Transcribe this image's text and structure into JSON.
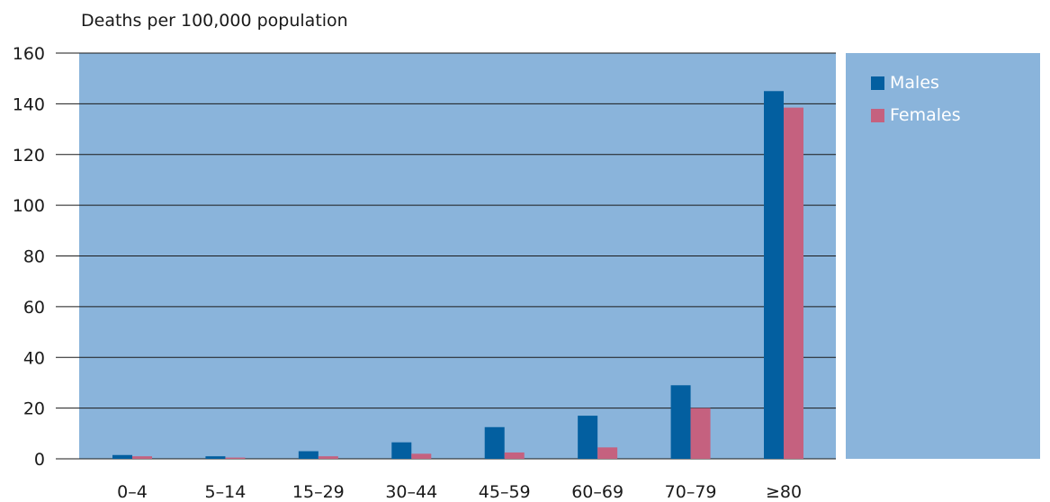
{
  "chart_data": {
    "type": "bar",
    "ylabel": "Deaths per 100,000 population",
    "xlabel": "",
    "categories": [
      "0–4",
      "5–14",
      "15–29",
      "30–44",
      "45–59",
      "60–69",
      "70–79",
      "≥80"
    ],
    "series": [
      {
        "name": "Males",
        "color": "#035FA0",
        "values": [
          1.5,
          1,
          3,
          6.5,
          12.5,
          17,
          29,
          145
        ]
      },
      {
        "name": "Females",
        "color": "#C5617F",
        "values": [
          1,
          0.5,
          1,
          2,
          2.5,
          4.5,
          20,
          138.5
        ]
      }
    ],
    "ylim": [
      0,
      160
    ],
    "yticks": [
      0,
      20,
      40,
      60,
      80,
      100,
      120,
      140,
      160
    ],
    "grid": true,
    "legend_position": "right",
    "colors": {
      "plot_background": "#8AB4DB",
      "legend_background": "#8AB4DB",
      "gridline": "#1a1a1a"
    }
  }
}
